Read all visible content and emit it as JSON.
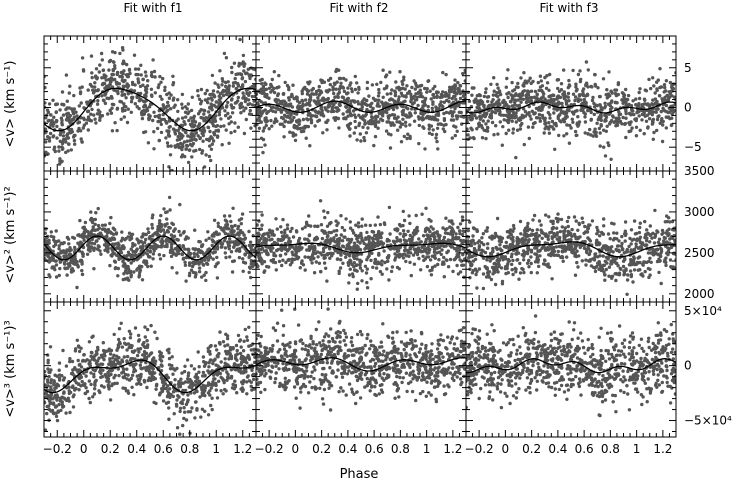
{
  "figure": {
    "columns": [
      "Fit with f1",
      "Fit with f2",
      "Fit with f3"
    ],
    "xlabel": "Phase",
    "ylabels": [
      "<v> (km s⁻¹)",
      "<v>² (km s⁻¹)²",
      "<v>³ (km s⁻¹)³"
    ]
  },
  "colors": {
    "points": "#555555",
    "fit": "#000000",
    "axes": "#000000"
  },
  "chart_data": {
    "type": "scatter",
    "title": "",
    "layout": "3x3 grid, rows share y-axis, columns share x-axis",
    "columns": [
      "Fit with f1",
      "Fit with f2",
      "Fit with f3"
    ],
    "x": {
      "label": "Phase",
      "range": [
        -0.3,
        1.3
      ],
      "ticks": [
        -0.2,
        0,
        0.2,
        0.4,
        0.6,
        0.8,
        1,
        1.2
      ],
      "tick_labels": [
        "−0.2",
        "0",
        "0.2",
        "0.4",
        "0.6",
        "0.8",
        "1",
        "1.2"
      ]
    },
    "rows": [
      {
        "ylabel": "<v> (km s⁻¹)",
        "range": [
          -8,
          9
        ],
        "ticks": [
          5,
          0,
          -5
        ],
        "tick_labels": [
          "5",
          "0",
          "−5"
        ],
        "fits": [
          {
            "column": "Fit with f1",
            "mean": 0,
            "harmonics": [
              [
                1,
                2.6,
                0.29
              ],
              [
                2,
                0.4,
                0.1
              ]
            ],
            "scatter": 2.2
          },
          {
            "column": "Fit with f2",
            "mean": 0,
            "harmonics": [
              [
                1,
                0.2,
                0.3
              ],
              [
                2,
                0.6,
                0.8
              ]
            ],
            "scatter": 1.8
          },
          {
            "column": "Fit with f3",
            "mean": 0,
            "harmonics": [
              [
                1,
                0.4,
                0.3
              ],
              [
                3,
                0.3,
                0.25
              ]
            ],
            "scatter": 1.8
          }
        ]
      },
      {
        "ylabel": "<v>² (km s⁻¹)²",
        "range": [
          1900,
          3500
        ],
        "ticks": [
          3500,
          3000,
          2500,
          2000
        ],
        "tick_labels": [
          "3500",
          "3000",
          "2500",
          "2000"
        ],
        "fits": [
          {
            "column": "Fit with f1",
            "mean": 2560,
            "harmonics": [
              [
                2,
                145,
                0.1
              ]
            ],
            "scatter": 140
          },
          {
            "column": "Fit with f2",
            "mean": 2570,
            "harmonics": [
              [
                1,
                50,
                0.0
              ],
              [
                2,
                20,
                0.2
              ]
            ],
            "scatter": 160
          },
          {
            "column": "Fit with f3",
            "mean": 2560,
            "harmonics": [
              [
                1,
                80,
                0.4
              ],
              [
                2,
                30,
                0.1
              ]
            ],
            "scatter": 160
          }
        ]
      },
      {
        "ylabel": "<v>³ (km s⁻¹)³",
        "range": [
          -65000,
          58000
        ],
        "ticks": [
          50000,
          0,
          -50000
        ],
        "tick_labels": [
          "5×10⁴",
          "0",
          "−5×10⁴"
        ],
        "fits": [
          {
            "column": "Fit with f1",
            "mean": -7000,
            "harmonics": [
              [
                1,
                12000,
                0.3
              ],
              [
                2,
                6000,
                0.0
              ]
            ],
            "scatter": 14000
          },
          {
            "column": "Fit with f2",
            "mean": 2000,
            "harmonics": [
              [
                1,
                3000,
                0.1
              ],
              [
                2,
                4000,
                0.8
              ]
            ],
            "scatter": 14000
          },
          {
            "column": "Fit with f3",
            "mean": 0,
            "harmonics": [
              [
                1,
                4000,
                0.3
              ],
              [
                3,
                3000,
                0.2
              ]
            ],
            "scatter": 14000
          }
        ]
      }
    ],
    "points_per_panel": 900,
    "grid": false,
    "legend": "none"
  }
}
